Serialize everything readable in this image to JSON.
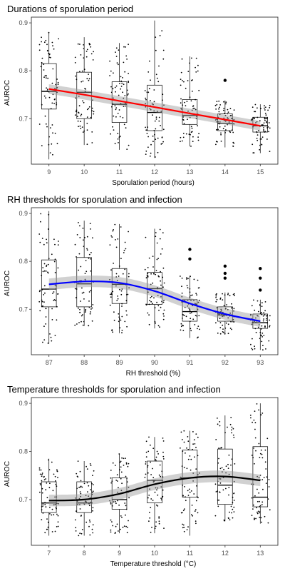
{
  "chart_data": [
    {
      "type": "box",
      "title": "Durations of sporulation period",
      "xlabel": "Sporulation period (hours)",
      "ylabel": "AUROC",
      "categories": [
        "9",
        "10",
        "11",
        "12",
        "13",
        "14",
        "15"
      ],
      "yticks": [
        0.7,
        0.8,
        0.9
      ],
      "ylim": [
        0.605,
        0.912
      ],
      "grid": false,
      "trend_color": "#ff0000",
      "boxes": [
        {
          "q1": 0.72,
          "median": 0.757,
          "q3": 0.815,
          "whisker_low": 0.615,
          "whisker_high": 0.88
        },
        {
          "q1": 0.7,
          "median": 0.755,
          "q3": 0.797,
          "whisker_low": 0.645,
          "whisker_high": 0.87
        },
        {
          "q1": 0.692,
          "median": 0.73,
          "q3": 0.777,
          "whisker_low": 0.635,
          "whisker_high": 0.858
        },
        {
          "q1": 0.675,
          "median": 0.713,
          "q3": 0.77,
          "whisker_low": 0.618,
          "whisker_high": 0.905
        },
        {
          "q1": 0.688,
          "median": 0.707,
          "q3": 0.74,
          "whisker_low": 0.642,
          "whisker_high": 0.83
        },
        {
          "q1": 0.675,
          "median": 0.69,
          "q3": 0.71,
          "whisker_low": 0.64,
          "whisker_high": 0.738
        },
        {
          "q1": 0.672,
          "median": 0.685,
          "q3": 0.703,
          "whisker_low": 0.628,
          "whisker_high": 0.73
        }
      ],
      "outliers": [
        {
          "x": "14",
          "values": [
            0.78
          ]
        }
      ],
      "trend": {
        "x": [
          "9",
          "10",
          "11",
          "12",
          "13",
          "14",
          "15"
        ],
        "y": [
          0.762,
          0.75,
          0.737,
          0.724,
          0.711,
          0.698,
          0.685
        ],
        "band": 0.01
      }
    },
    {
      "type": "box",
      "title": "RH thresholds for sporulation and infection",
      "xlabel": "RH threshold (%)",
      "ylabel": "AUROC",
      "categories": [
        "87",
        "88",
        "89",
        "90",
        "91",
        "92",
        "93"
      ],
      "yticks": [
        0.7,
        0.8,
        0.9
      ],
      "ylim": [
        0.605,
        0.912
      ],
      "grid": false,
      "trend_color": "#0000ff",
      "boxes": [
        {
          "q1": 0.705,
          "median": 0.742,
          "q3": 0.803,
          "whisker_low": 0.628,
          "whisker_high": 0.905
        },
        {
          "q1": 0.705,
          "median": 0.753,
          "q3": 0.808,
          "whisker_low": 0.665,
          "whisker_high": 0.885
        },
        {
          "q1": 0.712,
          "median": 0.752,
          "q3": 0.785,
          "whisker_low": 0.65,
          "whisker_high": 0.878
        },
        {
          "q1": 0.71,
          "median": 0.743,
          "q3": 0.777,
          "whisker_low": 0.66,
          "whisker_high": 0.868
        },
        {
          "q1": 0.675,
          "median": 0.695,
          "q3": 0.72,
          "whisker_low": 0.64,
          "whisker_high": 0.77
        },
        {
          "q1": 0.675,
          "median": 0.688,
          "q3": 0.705,
          "whisker_low": 0.648,
          "whisker_high": 0.735
        },
        {
          "q1": 0.66,
          "median": 0.672,
          "q3": 0.69,
          "whisker_low": 0.615,
          "whisker_high": 0.72
        }
      ],
      "outliers": [
        {
          "x": "91",
          "values": [
            0.805,
            0.825
          ]
        },
        {
          "x": "92",
          "values": [
            0.765,
            0.775,
            0.79
          ]
        },
        {
          "x": "93",
          "values": [
            0.74,
            0.765,
            0.785
          ]
        }
      ],
      "trend": {
        "x": [
          "87",
          "88",
          "89",
          "90",
          "91",
          "92",
          "93"
        ],
        "y": [
          0.752,
          0.758,
          0.755,
          0.738,
          0.712,
          0.69,
          0.675
        ],
        "band": 0.012
      }
    },
    {
      "type": "box",
      "title": "Temperature thresholds for sporulation and infection",
      "xlabel": "Temperature threshold (°C)",
      "ylabel": "AUROC",
      "categories": [
        "7",
        "8",
        "9",
        "10",
        "11",
        "12",
        "13"
      ],
      "yticks": [
        0.7,
        0.8,
        0.9
      ],
      "ylim": [
        0.605,
        0.912
      ],
      "grid": false,
      "trend_color": "#000000",
      "boxes": [
        {
          "q1": 0.673,
          "median": 0.693,
          "q3": 0.737,
          "whisker_low": 0.625,
          "whisker_high": 0.785
        },
        {
          "q1": 0.673,
          "median": 0.693,
          "q3": 0.737,
          "whisker_low": 0.625,
          "whisker_high": 0.78
        },
        {
          "q1": 0.68,
          "median": 0.7,
          "q3": 0.745,
          "whisker_low": 0.63,
          "whisker_high": 0.795
        },
        {
          "q1": 0.693,
          "median": 0.74,
          "q3": 0.78,
          "whisker_low": 0.63,
          "whisker_high": 0.83
        },
        {
          "q1": 0.705,
          "median": 0.745,
          "q3": 0.803,
          "whisker_low": 0.625,
          "whisker_high": 0.843
        },
        {
          "q1": 0.69,
          "median": 0.73,
          "q3": 0.805,
          "whisker_low": 0.655,
          "whisker_high": 0.875
        },
        {
          "q1": 0.685,
          "median": 0.705,
          "q3": 0.81,
          "whisker_low": 0.65,
          "whisker_high": 0.9
        }
      ],
      "outliers": [],
      "trend": {
        "x": [
          "7",
          "8",
          "9",
          "10",
          "11",
          "12",
          "13"
        ],
        "y": [
          0.698,
          0.7,
          0.712,
          0.732,
          0.745,
          0.748,
          0.74
        ],
        "band": 0.012
      }
    }
  ]
}
